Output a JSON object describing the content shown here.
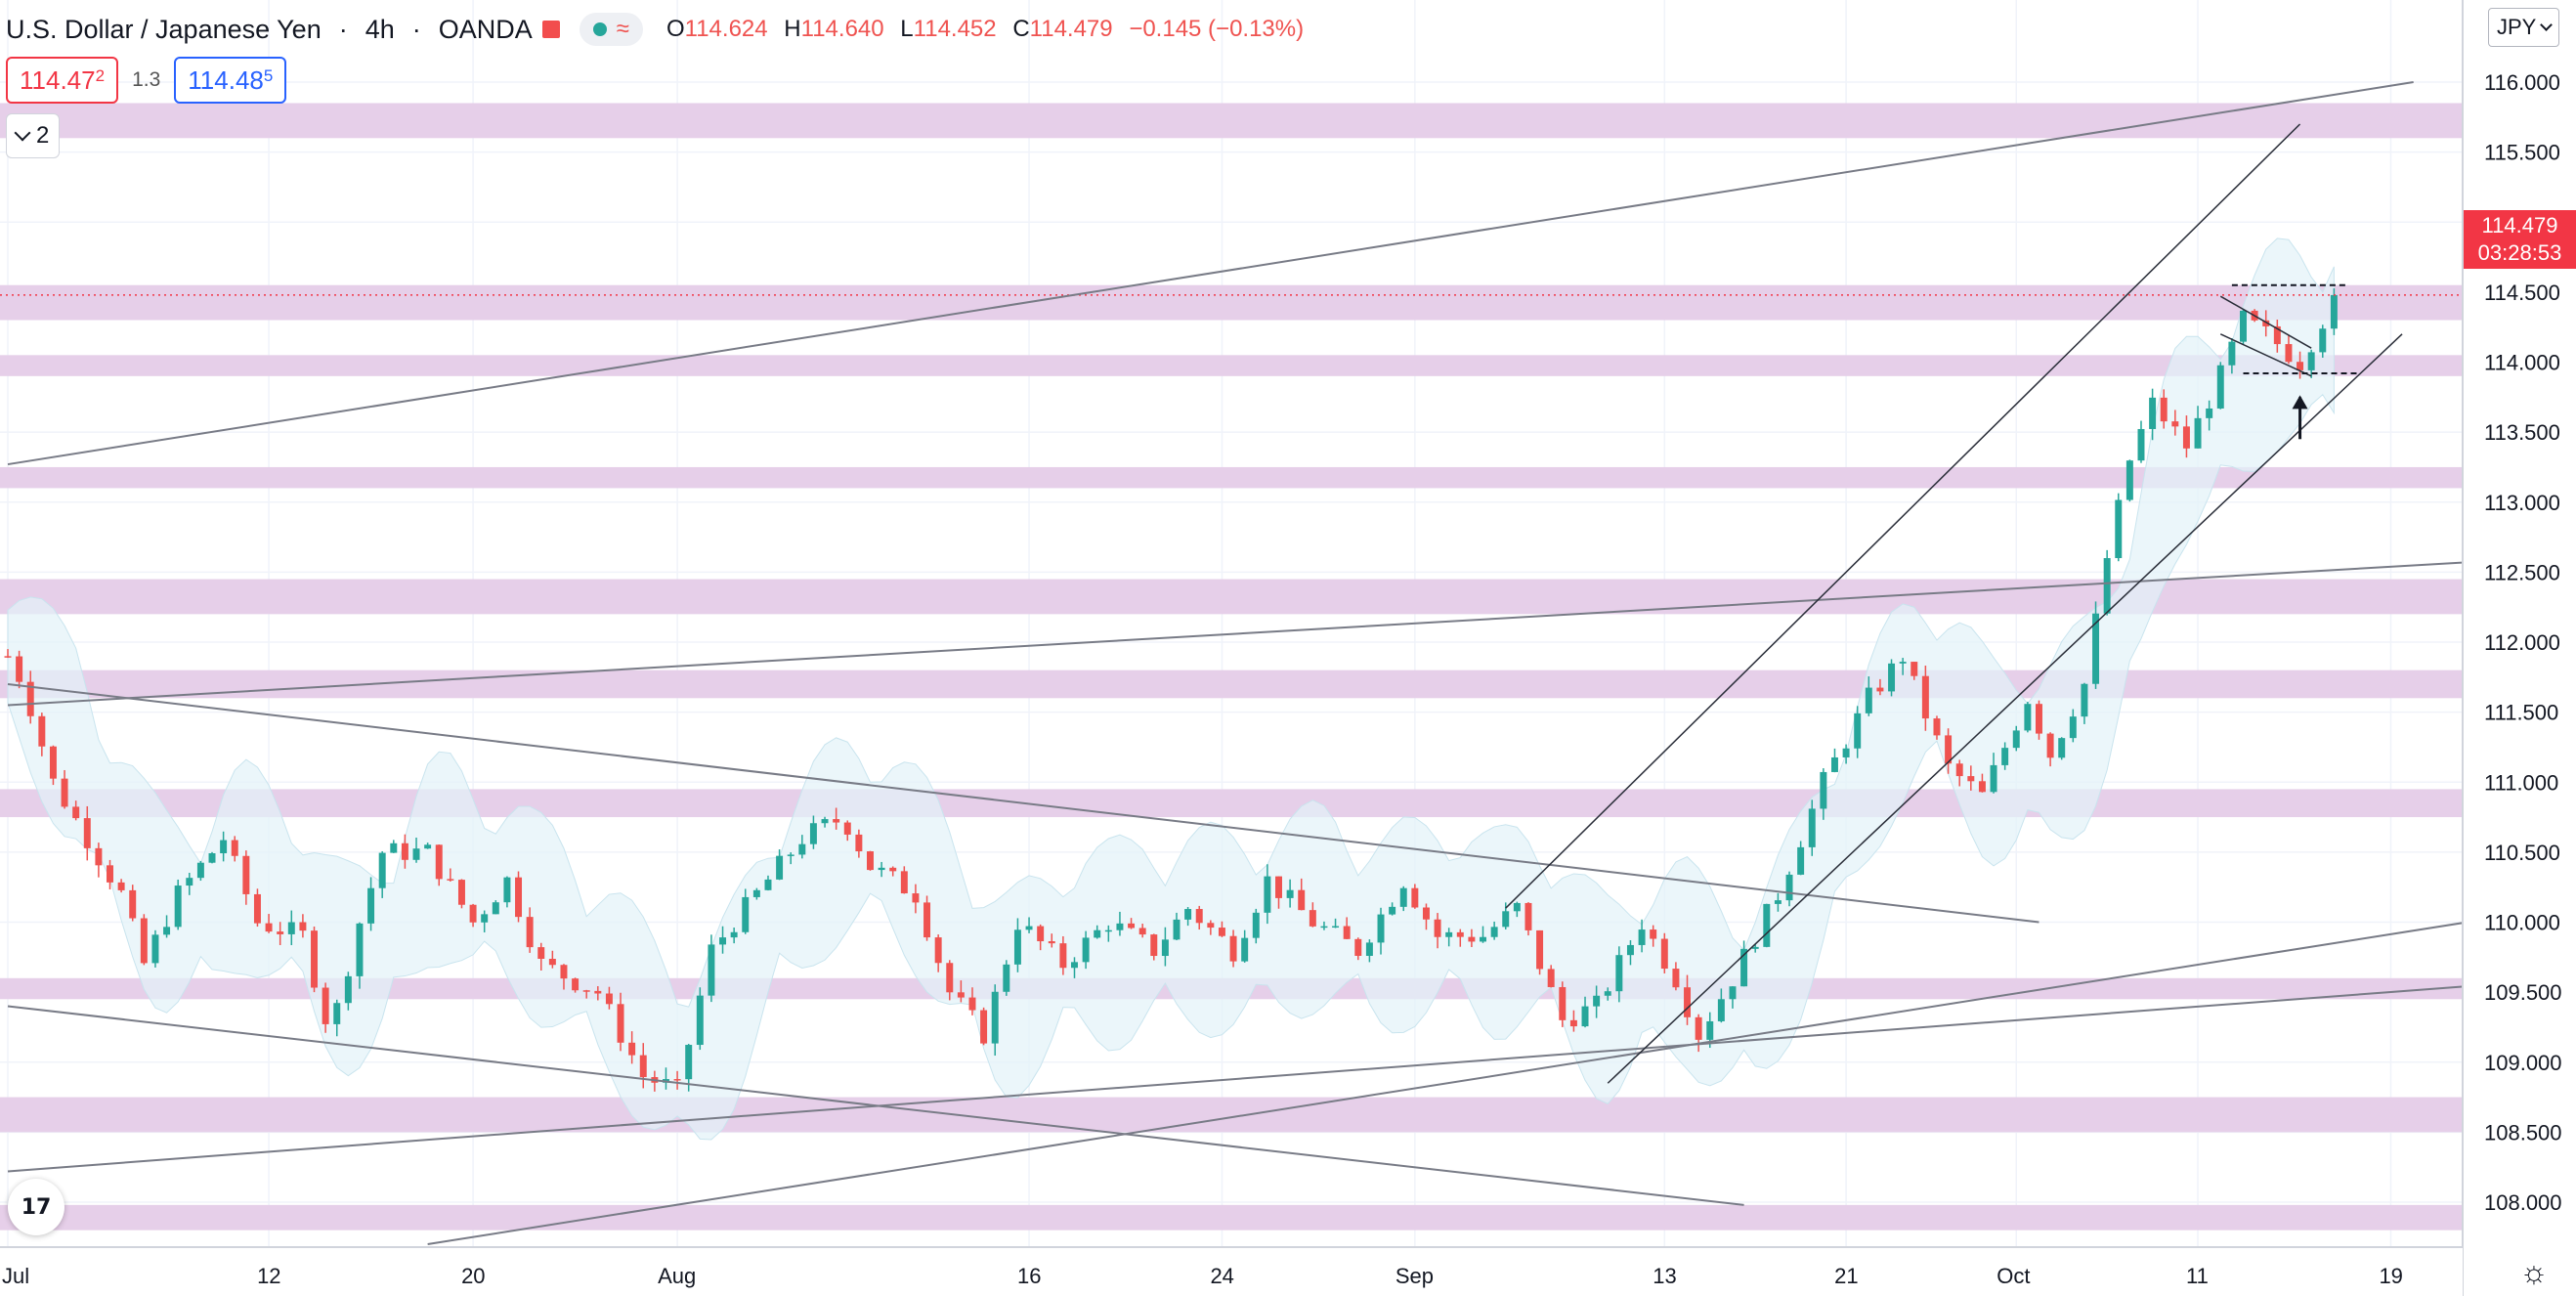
{
  "header": {
    "symbol": "U.S. Dollar / Japanese Yen",
    "separator": "·",
    "timeframe": "4h",
    "source": "OANDA",
    "ohlc": {
      "o_label": "O",
      "o": "114.624",
      "h_label": "H",
      "h": "114.640",
      "l_label": "L",
      "l": "114.452",
      "c_label": "C",
      "c": "114.479",
      "change": "−0.145 (−0.13%)"
    }
  },
  "pill": {
    "wave": "≈"
  },
  "prices": {
    "sell_main": "114.47",
    "sell_sup": "2",
    "spread": "1.3",
    "buy_main": "114.48",
    "buy_sup": "5"
  },
  "collapse": {
    "count": "2"
  },
  "currency": {
    "label": "JPY"
  },
  "last_price": {
    "value": "114.479",
    "countdown": "03:28:53"
  },
  "logo": {
    "text": "17"
  },
  "colors": {
    "up": "#26a69a",
    "down": "#ef5350",
    "zone": "#e6cfe9",
    "band": "#e3f2f8",
    "lastline": "#f23645",
    "trend": "#787b86"
  },
  "chart_data": {
    "type": "candlestick",
    "instrument": "U.S. Dollar / Japanese Yen",
    "timeframe": "4h",
    "y_ticks": [
      "108.000",
      "108.500",
      "109.000",
      "109.500",
      "110.000",
      "110.500",
      "111.000",
      "111.500",
      "112.000",
      "112.500",
      "113.000",
      "113.500",
      "114.000",
      "114.500",
      "115.000",
      "115.500",
      "116.000"
    ],
    "x_ticks": [
      "Jul",
      "12",
      "20",
      "Aug",
      "16",
      "24",
      "Sep",
      "13",
      "21",
      "Oct",
      "11",
      "19"
    ],
    "ylim": [
      107.8,
      116.0
    ],
    "last_price": 114.479,
    "grid": true,
    "path_points": [
      {
        "x": 0,
        "y": 111.9
      },
      {
        "x": 0.7,
        "y": 111.7
      },
      {
        "x": 2,
        "y": 111.0
      },
      {
        "x": 3.5,
        "y": 110.6
      },
      {
        "x": 5,
        "y": 110.2
      },
      {
        "x": 6,
        "y": 109.7
      },
      {
        "x": 7.5,
        "y": 110.2
      },
      {
        "x": 9.5,
        "y": 110.6
      },
      {
        "x": 11,
        "y": 110.0
      },
      {
        "x": 13,
        "y": 109.9
      },
      {
        "x": 14.2,
        "y": 109.2
      },
      {
        "x": 15.5,
        "y": 110.0
      },
      {
        "x": 16.5,
        "y": 110.5
      },
      {
        "x": 18.5,
        "y": 110.5
      },
      {
        "x": 20.5,
        "y": 110.0
      },
      {
        "x": 22,
        "y": 110.3
      },
      {
        "x": 23.5,
        "y": 109.7
      },
      {
        "x": 26,
        "y": 109.5
      },
      {
        "x": 28,
        "y": 108.9
      },
      {
        "x": 29.5,
        "y": 108.8
      },
      {
        "x": 31,
        "y": 109.8
      },
      {
        "x": 33,
        "y": 110.2
      },
      {
        "x": 35,
        "y": 110.6
      },
      {
        "x": 36.8,
        "y": 110.75
      },
      {
        "x": 38,
        "y": 110.4
      },
      {
        "x": 40,
        "y": 110.2
      },
      {
        "x": 41.5,
        "y": 109.5
      },
      {
        "x": 43,
        "y": 109.2
      },
      {
        "x": 44.5,
        "y": 110.0
      },
      {
        "x": 46.5,
        "y": 109.7
      },
      {
        "x": 48.5,
        "y": 110.0
      },
      {
        "x": 50.5,
        "y": 109.8
      },
      {
        "x": 52,
        "y": 110.1
      },
      {
        "x": 54,
        "y": 109.8
      },
      {
        "x": 55.5,
        "y": 110.3
      },
      {
        "x": 57.5,
        "y": 110.0
      },
      {
        "x": 59.5,
        "y": 109.8
      },
      {
        "x": 61.5,
        "y": 110.3
      },
      {
        "x": 63,
        "y": 109.9
      },
      {
        "x": 65,
        "y": 109.9
      },
      {
        "x": 66.5,
        "y": 110.1
      },
      {
        "x": 68.5,
        "y": 109.3
      },
      {
        "x": 70,
        "y": 109.4
      },
      {
        "x": 72,
        "y": 110.0
      },
      {
        "x": 73.5,
        "y": 109.6
      },
      {
        "x": 74.5,
        "y": 109.2
      },
      {
        "x": 76,
        "y": 109.6
      },
      {
        "x": 78,
        "y": 110.2
      },
      {
        "x": 80,
        "y": 111.0
      },
      {
        "x": 82,
        "y": 111.6
      },
      {
        "x": 83.5,
        "y": 111.9
      },
      {
        "x": 84.2,
        "y": 111.6
      },
      {
        "x": 85.5,
        "y": 111.1
      },
      {
        "x": 87,
        "y": 110.9
      },
      {
        "x": 89,
        "y": 111.6
      },
      {
        "x": 90,
        "y": 111.2
      },
      {
        "x": 91.5,
        "y": 111.7
      },
      {
        "x": 92.5,
        "y": 112.6
      },
      {
        "x": 93.5,
        "y": 113.3
      },
      {
        "x": 94.5,
        "y": 113.7
      },
      {
        "x": 96,
        "y": 113.4
      },
      {
        "x": 97.5,
        "y": 113.9
      },
      {
        "x": 98.5,
        "y": 114.3
      },
      {
        "x": 99.5,
        "y": 114.2
      },
      {
        "x": 101,
        "y": 114.0
      },
      {
        "x": 102,
        "y": 114.3
      },
      {
        "x": 102.8,
        "y": 114.48
      }
    ],
    "bollinger_width": 0.55,
    "zones": [
      {
        "from": 115.6,
        "to": 115.85
      },
      {
        "from": 114.3,
        "to": 114.55
      },
      {
        "from": 113.9,
        "to": 114.05
      },
      {
        "from": 113.1,
        "to": 113.25
      },
      {
        "from": 112.2,
        "to": 112.45
      },
      {
        "from": 111.6,
        "to": 111.8
      },
      {
        "from": 110.75,
        "to": 110.95
      },
      {
        "from": 109.45,
        "to": 109.6
      },
      {
        "from": 108.5,
        "to": 108.75
      },
      {
        "from": 107.8,
        "to": 107.98
      }
    ],
    "trendlines": [
      {
        "x1": 0,
        "y1": 113.27,
        "x2": 106,
        "y2": 116.0
      },
      {
        "x1": 0,
        "y1": 111.55,
        "x2": 111.5,
        "y2": 112.6
      },
      {
        "x1": 0,
        "y1": 111.7,
        "x2": 89.5,
        "y2": 110.0
      },
      {
        "x1": 0,
        "y1": 109.4,
        "x2": 76.5,
        "y2": 107.98
      },
      {
        "x1": 0,
        "y1": 108.22,
        "x2": 111.5,
        "y2": 109.58
      },
      {
        "x1": 18.5,
        "y1": 107.7,
        "x2": 111.5,
        "y2": 110.08
      },
      {
        "x1": 66,
        "y1": 110.1,
        "x2": 101,
        "y2": 115.7
      },
      {
        "x1": 70.5,
        "y1": 108.85,
        "x2": 105.5,
        "y2": 114.2
      },
      {
        "x1": 97.5,
        "y1": 114.2,
        "x2": 101.5,
        "y2": 113.9
      },
      {
        "x1": 97.5,
        "y1": 114.47,
        "x2": 101.5,
        "y2": 114.1
      }
    ],
    "dashed_levels": [
      {
        "x1": 98,
        "x2": 103,
        "y": 114.55
      },
      {
        "x1": 98.5,
        "x2": 103.5,
        "y": 113.92
      }
    ],
    "arrow": {
      "x": 101,
      "from": 113.45,
      "to": 113.75
    }
  }
}
